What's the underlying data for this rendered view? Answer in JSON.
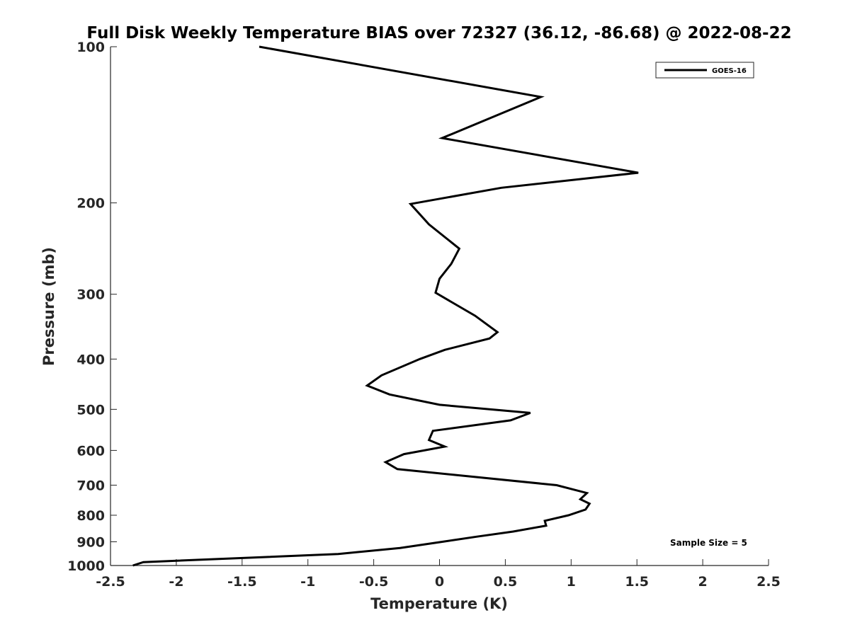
{
  "chart_data": {
    "type": "line",
    "title": "Full Disk Weekly Temperature BIAS over 72327 (36.12, -86.68) @ 2022-08-22",
    "xlabel": "Temperature (K)",
    "ylabel": "Pressure (mb)",
    "xlim": [
      -2.5,
      2.5
    ],
    "ylim": [
      1000,
      100
    ],
    "y_scale": "log",
    "y_reversed": true,
    "x_ticks": [
      -2.5,
      -2,
      -1.5,
      -1,
      -0.5,
      0,
      0.5,
      1,
      1.5,
      2,
      2.5
    ],
    "x_tick_labels": [
      "-2.5",
      "-2",
      "-1.5",
      "-1",
      "-0.5",
      "0",
      "0.5",
      "1",
      "1.5",
      "2",
      "2.5"
    ],
    "y_ticks": [
      100,
      200,
      300,
      400,
      500,
      600,
      700,
      800,
      900,
      1000
    ],
    "y_tick_labels": [
      "100",
      "200",
      "300",
      "400",
      "500",
      "600",
      "700",
      "800",
      "900",
      "1000"
    ],
    "grid": false,
    "legend_position": "top-right",
    "series": [
      {
        "name": "GOES-16",
        "color": "#000000",
        "temperature": [
          -1.37,
          0.77,
          0.02,
          1.51,
          0.47,
          -0.22,
          -0.08,
          0.15,
          0.09,
          0.0,
          -0.03,
          0.27,
          0.44,
          0.38,
          0.04,
          -0.15,
          -0.44,
          -0.55,
          -0.38,
          0.0,
          0.69,
          0.54,
          -0.05,
          -0.08,
          0.04,
          -0.27,
          -0.41,
          -0.32,
          0.89,
          1.12,
          1.07,
          1.14,
          1.11,
          0.98,
          0.8,
          0.81,
          0.56,
          0.28,
          0.02,
          -0.3,
          -0.77,
          -2.25,
          -2.33
        ],
        "pressure": [
          100,
          125,
          150,
          175,
          187,
          201,
          220,
          245,
          262,
          280,
          298,
          330,
          355,
          365,
          384,
          400,
          430,
          450,
          468,
          490,
          508,
          525,
          550,
          573,
          590,
          610,
          632,
          652,
          700,
          725,
          745,
          760,
          780,
          800,
          820,
          838,
          860,
          880,
          900,
          925,
          950,
          985,
          1000
        ]
      }
    ],
    "annotations": [
      "Sample Size = 5"
    ]
  }
}
